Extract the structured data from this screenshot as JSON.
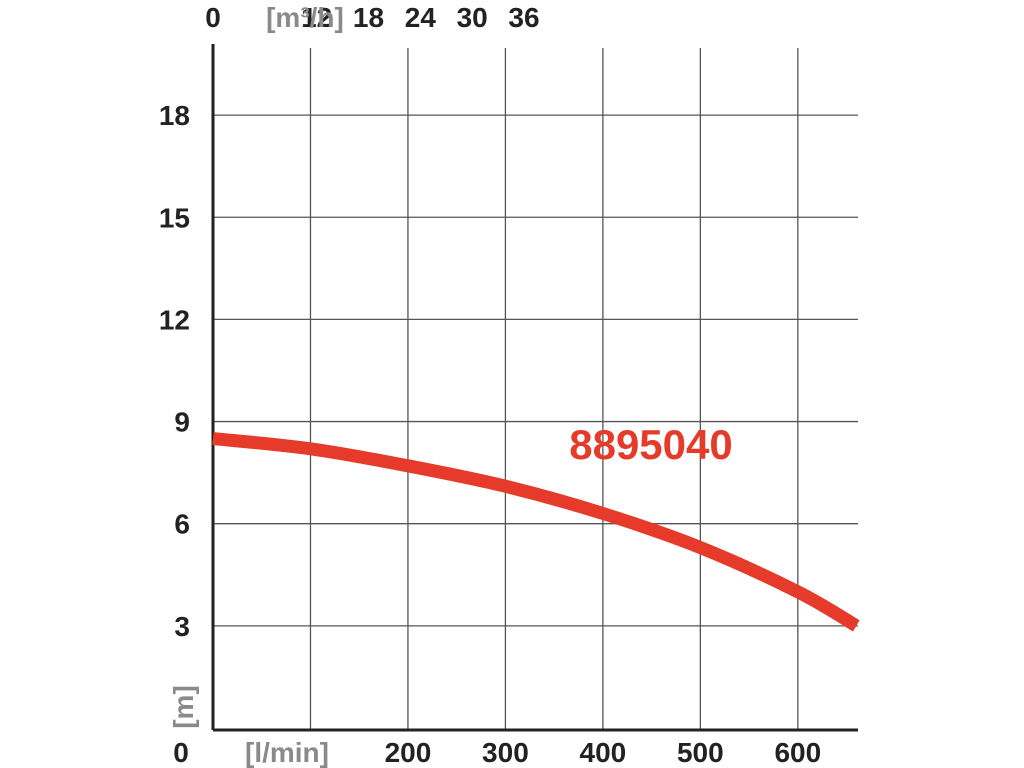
{
  "chart_data": {
    "type": "line",
    "top_axis": {
      "unit_label": "[m³/h]",
      "tick_labels": [
        {
          "value": 0,
          "label": "0"
        },
        {
          "value": 12,
          "label": "12"
        },
        {
          "value": 18,
          "label": "18"
        },
        {
          "value": 24,
          "label": "24"
        },
        {
          "value": 30,
          "label": "30"
        },
        {
          "value": 36,
          "label": "36"
        }
      ]
    },
    "x_axis": {
      "unit_label": "[l/min]",
      "range": [
        0,
        660
      ],
      "tick_labels": [
        {
          "value": 0,
          "label": "0"
        },
        {
          "value": 200,
          "label": "200"
        },
        {
          "value": 300,
          "label": "300"
        },
        {
          "value": 400,
          "label": "400"
        },
        {
          "value": 500,
          "label": "500"
        },
        {
          "value": 600,
          "label": "600"
        }
      ],
      "gridlines": [
        100,
        200,
        300,
        400,
        500,
        600
      ]
    },
    "y_axis": {
      "unit_label": "[m]",
      "range": [
        0,
        20
      ],
      "tick_labels": [
        {
          "value": 3,
          "label": "3"
        },
        {
          "value": 6,
          "label": "6"
        },
        {
          "value": 9,
          "label": "9"
        },
        {
          "value": 12,
          "label": "12"
        },
        {
          "value": 15,
          "label": "15"
        },
        {
          "value": 18,
          "label": "18"
        }
      ],
      "gridlines": [
        3,
        6,
        9,
        12,
        15,
        18
      ]
    },
    "series": [
      {
        "name": "8895040",
        "color": "#e63a2a",
        "points": [
          {
            "x": 0,
            "y": 8.5
          },
          {
            "x": 100,
            "y": 8.2
          },
          {
            "x": 200,
            "y": 7.7
          },
          {
            "x": 300,
            "y": 7.1
          },
          {
            "x": 400,
            "y": 6.3
          },
          {
            "x": 500,
            "y": 5.3
          },
          {
            "x": 600,
            "y": 4.0
          },
          {
            "x": 660,
            "y": 3.0
          }
        ]
      }
    ],
    "grid": true
  }
}
